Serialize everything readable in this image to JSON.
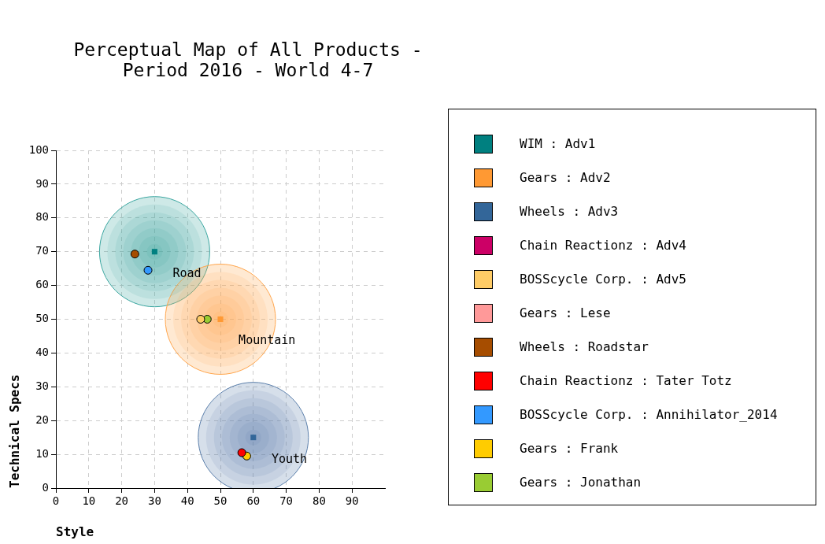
{
  "chart_data": {
    "type": "scatter",
    "title": "Perceptual Map of All Products - Period 2016 - World 4-7",
    "xlabel": "Style",
    "ylabel": "Technical Specs",
    "xlim": [
      0,
      100
    ],
    "xticks": [
      0,
      10,
      20,
      30,
      40,
      50,
      60,
      70,
      80,
      90
    ],
    "ylim": [
      0,
      100
    ],
    "yticks": [
      0,
      10,
      20,
      30,
      40,
      50,
      60,
      70,
      80,
      90,
      100
    ],
    "grid": true,
    "legend": "right",
    "marker": "circle",
    "annotations": [
      "Road",
      "Mountain",
      "Youth"
    ],
    "series": [
      {
        "type": "bubble",
        "x": [
          30,
          50,
          60
        ],
        "values": [
          70,
          50,
          15
        ],
        "sizes": [
          1,
          1,
          1
        ],
        "colors": [
          "#3aa6a0",
          "#ffa64d",
          "#5b7fab"
        ]
      },
      {
        "name": "WIM : Adv1",
        "color": "#008080",
        "marker": "square",
        "x": [
          30
        ],
        "values": [
          70
        ]
      },
      {
        "name": "Gears : Adv2",
        "color": "#ff9933",
        "marker": "square",
        "x": [
          50
        ],
        "values": [
          50
        ]
      },
      {
        "name": "Wheels : Adv3",
        "color": "#336699",
        "marker": "square",
        "x": [
          60
        ],
        "values": [
          15
        ]
      },
      {
        "name": "Chain Reactionz : Adv4",
        "color": "#cc0066",
        "x": [
          null
        ],
        "values": [
          null
        ]
      },
      {
        "name": "BOSScycle Corp. : Adv5",
        "color": "#ffcc66",
        "x": [
          44
        ],
        "values": [
          50
        ]
      },
      {
        "name": "Gears : Lese",
        "color": "#ff9999",
        "x": [
          null
        ],
        "values": [
          null
        ]
      },
      {
        "name": "Wheels : Roadstar",
        "color": "#a64d00",
        "x": [
          24
        ],
        "values": [
          69.3
        ]
      },
      {
        "name": "Chain Reactionz : Tater Totz",
        "color": "#ff0000",
        "x": [
          56.5
        ],
        "values": [
          10.5
        ]
      },
      {
        "name": "BOSScycle Corp. : Annihilator_2014",
        "color": "#3399ff",
        "x": [
          28
        ],
        "values": [
          64.5
        ]
      },
      {
        "name": "Gears : Frank",
        "color": "#ffcc00",
        "x": [
          58
        ],
        "values": [
          9.5
        ]
      },
      {
        "name": "Gears : Jonathan",
        "color": "#99cc33",
        "x": [
          46
        ],
        "values": [
          50
        ]
      }
    ]
  }
}
